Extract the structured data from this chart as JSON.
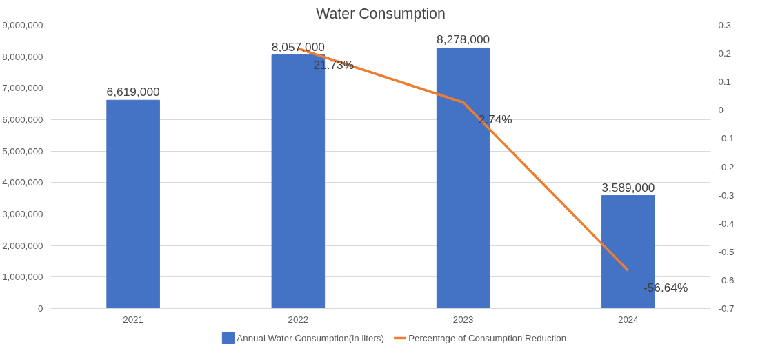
{
  "chart_data": {
    "type": "bar",
    "title": "Water Consumption",
    "categories": [
      "2021",
      "2022",
      "2023",
      "2024"
    ],
    "series": [
      {
        "name": "Annual Water Consumption(in liters)",
        "color": "#4472c4",
        "values": [
          6619000,
          8057000,
          8278000,
          3589000
        ],
        "value_labels": [
          "6,619,000",
          "8,057,000",
          "8,278,000",
          "3,589,000"
        ]
      },
      {
        "name": "Percentage of Consumption Reduction",
        "type": "line",
        "axis": "y2",
        "color": "#ed7d31",
        "values": [
          null,
          0.2173,
          0.0274,
          -0.5664
        ],
        "value_labels": [
          null,
          "21.73%",
          "2.74%",
          "-56.64%"
        ]
      }
    ],
    "ylim": [
      0,
      9000000
    ],
    "yticks": [
      {
        "value": 0,
        "label": "0"
      },
      {
        "value": 1000000,
        "label": "1,000,000"
      },
      {
        "value": 2000000,
        "label": "2,000,000"
      },
      {
        "value": 3000000,
        "label": "3,000,000"
      },
      {
        "value": 4000000,
        "label": "4,000,000"
      },
      {
        "value": 5000000,
        "label": "5,000,000"
      },
      {
        "value": 6000000,
        "label": "6,000,000"
      },
      {
        "value": 7000000,
        "label": "7,000,000"
      },
      {
        "value": 8000000,
        "label": "8,000,000"
      },
      {
        "value": 9000000,
        "label": "9,000,000"
      }
    ],
    "y2lim": [
      -0.7,
      0.3
    ],
    "y2ticks": [
      0.3,
      0.2,
      0.1,
      0,
      -0.1,
      -0.2,
      -0.3,
      -0.4,
      -0.5,
      -0.6,
      -0.7
    ],
    "grid": "y",
    "legend": "bottom",
    "line_style": "solid"
  }
}
